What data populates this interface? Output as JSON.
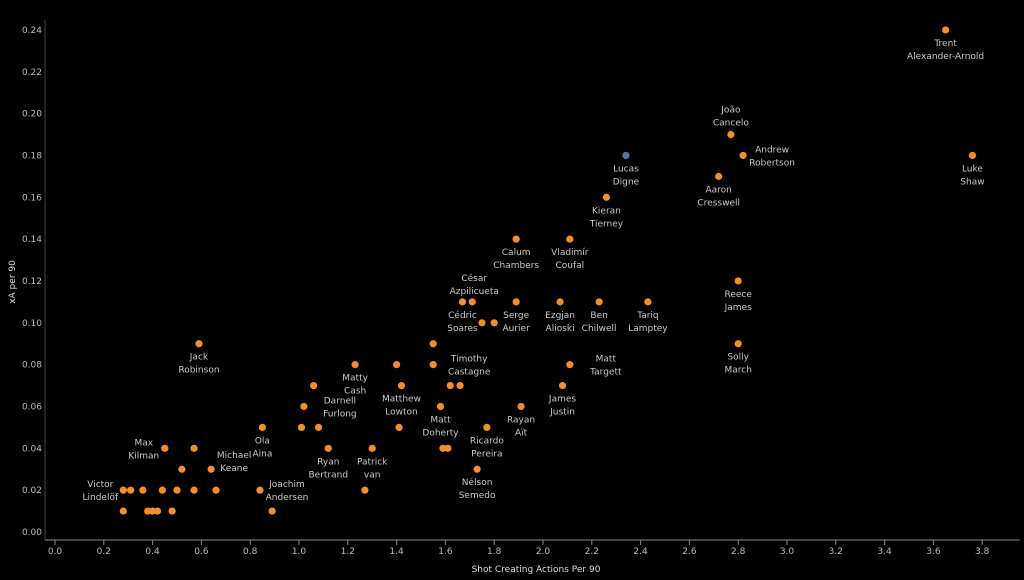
{
  "chart_data": {
    "type": "scatter",
    "title": "",
    "xlabel": "Shot Creating Actions Per 90",
    "ylabel": "xA per 90",
    "xlim": [
      0,
      3.9
    ],
    "ylim": [
      0,
      0.245
    ],
    "xticks": [
      "0.0",
      "0.2",
      "0.4",
      "0.6",
      "0.8",
      "1.0",
      "1.2",
      "1.4",
      "1.6",
      "1.8",
      "2.0",
      "2.2",
      "2.4",
      "2.6",
      "2.8",
      "3.0",
      "3.2",
      "3.4",
      "3.6",
      "3.8"
    ],
    "yticks": [
      "0.00",
      "0.02",
      "0.04",
      "0.06",
      "0.08",
      "0.10",
      "0.12",
      "0.14",
      "0.16",
      "0.18",
      "0.20",
      "0.22",
      "0.24"
    ],
    "grid": false,
    "colors": {
      "default": "#f28e2b",
      "highlight": "#4e79a7"
    },
    "points": [
      {
        "x": 3.65,
        "y": 0.24,
        "label": [
          "Trent",
          "Alexander-Arnold"
        ]
      },
      {
        "x": 2.77,
        "y": 0.19,
        "label": [
          "João",
          "Cancelo"
        ]
      },
      {
        "x": 2.82,
        "y": 0.18,
        "label": [
          "Andrew",
          "Robertson"
        ]
      },
      {
        "x": 2.34,
        "y": 0.18,
        "label": [
          "Lucas",
          "Digne"
        ],
        "highlight": true
      },
      {
        "x": 3.76,
        "y": 0.18,
        "label": [
          "Luke",
          "Shaw"
        ]
      },
      {
        "x": 2.72,
        "y": 0.17,
        "label": [
          "Aaron",
          "Cresswell"
        ]
      },
      {
        "x": 2.26,
        "y": 0.16,
        "label": [
          "Kieran",
          "Tierney"
        ]
      },
      {
        "x": 1.89,
        "y": 0.14,
        "label": [
          "Calum",
          "Chambers"
        ]
      },
      {
        "x": 2.11,
        "y": 0.14,
        "label": [
          "Vladimír",
          "Coufal"
        ]
      },
      {
        "x": 2.8,
        "y": 0.12,
        "label": [
          "Reece",
          "James"
        ]
      },
      {
        "x": 1.71,
        "y": 0.11,
        "label": [
          "César",
          "Azpilicueta"
        ]
      },
      {
        "x": 1.67,
        "y": 0.11,
        "label": [
          "Cédric",
          "Soares"
        ]
      },
      {
        "x": 1.89,
        "y": 0.11,
        "label": [
          "Serge",
          "Aurier"
        ]
      },
      {
        "x": 2.07,
        "y": 0.11,
        "label": [
          "Ezgjan",
          "Alioski"
        ]
      },
      {
        "x": 2.23,
        "y": 0.11,
        "label": [
          "Ben",
          "Chilwell"
        ]
      },
      {
        "x": 2.43,
        "y": 0.11,
        "label": [
          "Tariq",
          "Lamptey"
        ]
      },
      {
        "x": 1.75,
        "y": 0.1
      },
      {
        "x": 1.8,
        "y": 0.1
      },
      {
        "x": 0.59,
        "y": 0.09,
        "label": [
          "Jack",
          "Robinson"
        ]
      },
      {
        "x": 2.8,
        "y": 0.09,
        "label": [
          "Solly",
          "March"
        ]
      },
      {
        "x": 1.55,
        "y": 0.09
      },
      {
        "x": 1.55,
        "y": 0.08,
        "label": [
          "Timothy",
          "Castagne"
        ]
      },
      {
        "x": 1.23,
        "y": 0.08,
        "label": [
          "Matty",
          "Cash"
        ]
      },
      {
        "x": 1.4,
        "y": 0.08
      },
      {
        "x": 2.11,
        "y": 0.08,
        "label": [
          "Matt",
          "Targett"
        ]
      },
      {
        "x": 1.06,
        "y": 0.07
      },
      {
        "x": 1.42,
        "y": 0.07,
        "label": [
          "Matthew",
          "Lowton"
        ]
      },
      {
        "x": 1.62,
        "y": 0.07
      },
      {
        "x": 1.66,
        "y": 0.07
      },
      {
        "x": 2.08,
        "y": 0.07,
        "label": [
          "James",
          "Justin"
        ]
      },
      {
        "x": 1.02,
        "y": 0.06,
        "label": [
          "Darnell",
          "Furlong"
        ]
      },
      {
        "x": 1.58,
        "y": 0.06,
        "label": [
          "Matt",
          "Doherty"
        ]
      },
      {
        "x": 1.91,
        "y": 0.06,
        "label": [
          "Rayan",
          "Aït"
        ]
      },
      {
        "x": 0.85,
        "y": 0.05,
        "label": [
          "Ola",
          "Aina"
        ]
      },
      {
        "x": 1.01,
        "y": 0.05
      },
      {
        "x": 1.08,
        "y": 0.05
      },
      {
        "x": 1.41,
        "y": 0.05
      },
      {
        "x": 1.77,
        "y": 0.05,
        "label": [
          "Ricardo",
          "Pereira"
        ]
      },
      {
        "x": 0.45,
        "y": 0.04,
        "label": [
          "Max",
          "Kilman"
        ]
      },
      {
        "x": 0.57,
        "y": 0.04
      },
      {
        "x": 1.12,
        "y": 0.04,
        "label": [
          "Ryan",
          "Bertrand"
        ]
      },
      {
        "x": 1.3,
        "y": 0.04,
        "label": [
          "Patrick",
          "van"
        ]
      },
      {
        "x": 1.59,
        "y": 0.04
      },
      {
        "x": 1.61,
        "y": 0.04
      },
      {
        "x": 0.52,
        "y": 0.03
      },
      {
        "x": 0.64,
        "y": 0.03,
        "label": [
          "Michael",
          "Keane"
        ]
      },
      {
        "x": 1.73,
        "y": 0.03,
        "label": [
          "Nélson",
          "Semedo"
        ]
      },
      {
        "x": 0.28,
        "y": 0.02,
        "label": [
          "Victor",
          "Lindelöf"
        ]
      },
      {
        "x": 0.31,
        "y": 0.02
      },
      {
        "x": 0.36,
        "y": 0.02
      },
      {
        "x": 0.44,
        "y": 0.02
      },
      {
        "x": 0.5,
        "y": 0.02
      },
      {
        "x": 0.57,
        "y": 0.02
      },
      {
        "x": 0.66,
        "y": 0.02
      },
      {
        "x": 0.84,
        "y": 0.02,
        "label": [
          "Joachim",
          "Andersen"
        ]
      },
      {
        "x": 1.27,
        "y": 0.02
      },
      {
        "x": 0.28,
        "y": 0.01
      },
      {
        "x": 0.38,
        "y": 0.01
      },
      {
        "x": 0.4,
        "y": 0.01
      },
      {
        "x": 0.42,
        "y": 0.01
      },
      {
        "x": 0.48,
        "y": 0.01
      },
      {
        "x": 0.89,
        "y": 0.01
      }
    ]
  }
}
